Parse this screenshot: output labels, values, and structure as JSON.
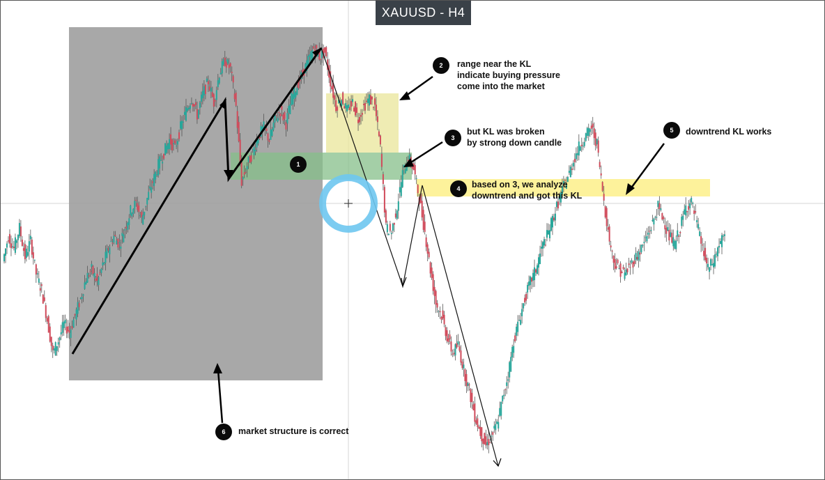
{
  "title": "XAUUSD - H4",
  "notes": [
    {
      "num": "1",
      "text": ""
    },
    {
      "num": "2",
      "text": "range near the KL\nindicate buying pressure\ncome into the market"
    },
    {
      "num": "3",
      "text": "but KL was broken\nby strong down candle"
    },
    {
      "num": "4",
      "text": "based on 3, we analyze\ndowntrend and got this KL"
    },
    {
      "num": "5",
      "text": "downtrend KL works"
    },
    {
      "num": "6",
      "text": "market structure is correct"
    }
  ],
  "colors": {
    "up_candle": "#26a69a",
    "down_candle": "#d04a5a",
    "structure_box": "#9e9e9e",
    "range_zone": "#e9e59a",
    "kl_zone_green": "#86bf8a",
    "kl_zone_yellow": "#fdf08a",
    "crosshair_ring": "#6ec6f0"
  },
  "chart_data": {
    "type": "candlestick",
    "symbol": "XAUUSD",
    "timeframe": "H4",
    "price_path_relative": [
      0.49,
      0.55,
      0.52,
      0.57,
      0.5,
      0.54,
      0.46,
      0.42,
      0.35,
      0.27,
      0.3,
      0.34,
      0.32,
      0.36,
      0.4,
      0.45,
      0.47,
      0.44,
      0.48,
      0.52,
      0.55,
      0.53,
      0.57,
      0.61,
      0.63,
      0.59,
      0.64,
      0.68,
      0.72,
      0.75,
      0.78,
      0.76,
      0.81,
      0.85,
      0.88,
      0.84,
      0.89,
      0.92,
      0.87,
      0.94,
      0.97,
      0.95,
      0.86,
      0.68,
      0.72,
      0.75,
      0.79,
      0.81,
      0.78,
      0.83,
      0.85,
      0.82,
      0.88,
      0.91,
      0.94,
      0.97,
      1.0,
      0.98,
      0.99,
      0.92,
      0.86,
      0.88,
      0.85,
      0.87,
      0.83,
      0.86,
      0.88,
      0.86,
      0.76,
      0.57,
      0.56,
      0.62,
      0.7,
      0.74,
      0.71,
      0.64,
      0.56,
      0.47,
      0.39,
      0.36,
      0.31,
      0.27,
      0.29,
      0.23,
      0.18,
      0.12,
      0.08,
      0.05,
      0.07,
      0.1,
      0.16,
      0.22,
      0.3,
      0.35,
      0.4,
      0.44,
      0.47,
      0.52,
      0.55,
      0.59,
      0.63,
      0.67,
      0.7,
      0.74,
      0.77,
      0.79,
      0.81,
      0.77,
      0.66,
      0.56,
      0.49,
      0.47,
      0.46,
      0.48,
      0.5,
      0.52,
      0.55,
      0.58,
      0.62,
      0.59,
      0.55,
      0.53,
      0.57,
      0.62,
      0.63,
      0.58,
      0.52,
      0.47,
      0.49,
      0.53,
      0.55
    ]
  }
}
